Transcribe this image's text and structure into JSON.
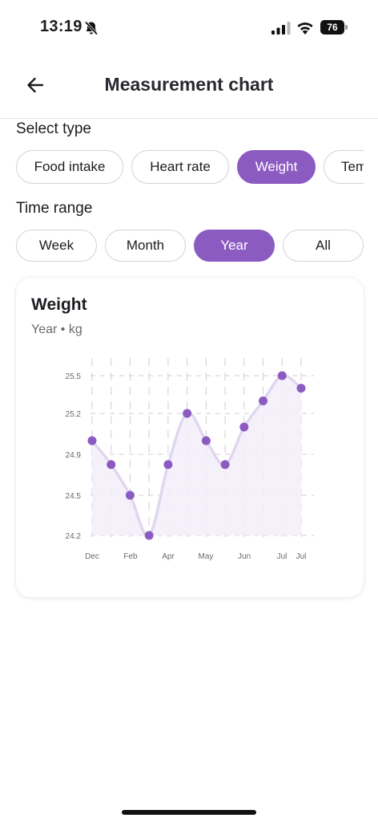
{
  "status_bar": {
    "time": "13:19",
    "battery": "76",
    "icons": [
      "bell-off-icon",
      "cellular-signal-icon",
      "wifi-icon",
      "battery-icon"
    ]
  },
  "app_bar": {
    "title": "Measurement chart",
    "back_icon": "arrow-left-icon"
  },
  "select_type": {
    "label": "Select type",
    "options": [
      "Food intake",
      "Heart rate",
      "Weight",
      "Tem"
    ],
    "selected": "Weight"
  },
  "time_range": {
    "label": "Time range",
    "options": [
      "Week",
      "Month",
      "Year",
      "All"
    ],
    "selected": "Year"
  },
  "card": {
    "title": "Weight",
    "subtitle": "Year • kg"
  },
  "colors": {
    "accent": "#8c5bc2",
    "line": "#e1d6ef",
    "fill": "#f3eefa",
    "grid": "#cfcfd4"
  },
  "chart_data": {
    "type": "area",
    "title": "Weight",
    "xlabel": "",
    "ylabel": "",
    "x_ticks": [
      "Dec",
      "Feb",
      "Apr",
      "May",
      "Jun",
      "Jul",
      "Jul"
    ],
    "y_ticks": [
      "24.2",
      "24.5",
      "24.9",
      "25.2",
      "25.5"
    ],
    "ylim": [
      24.2,
      25.5
    ],
    "grid": true,
    "points": [
      25.0,
      24.8,
      24.5,
      24.2,
      24.8,
      25.2,
      25.0,
      24.8,
      25.1,
      25.3,
      25.5,
      25.4
    ]
  }
}
